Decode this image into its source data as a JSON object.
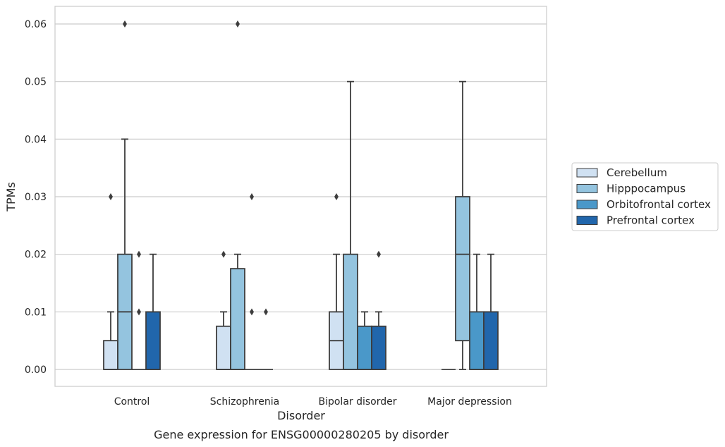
{
  "chart_data": {
    "type": "box",
    "title": "Gene expression for ENSG00000280205 by disorder",
    "xlabel": "Disorder",
    "ylabel": "TPMs",
    "ylim": [
      -0.003,
      0.063
    ],
    "yticks": [
      "0.00",
      "0.01",
      "0.02",
      "0.03",
      "0.04",
      "0.05",
      "0.06"
    ],
    "ytick_values": [
      0,
      0.01,
      0.02,
      0.03,
      0.04,
      0.05,
      0.06
    ],
    "grid": "horizontal",
    "legend_position": "right",
    "categories": [
      "Control",
      "Schizophrenia",
      "Bipolar disorder",
      "Major depression"
    ],
    "series": [
      {
        "name": "Cerebellum",
        "color": "#d0e1f2",
        "boxes": [
          {
            "whislo": 0,
            "q1": 0,
            "med": 0,
            "q3": 0.005,
            "whishi": 0.01,
            "fliers": [
              0.03
            ]
          },
          {
            "whislo": 0,
            "q1": 0,
            "med": 0,
            "q3": 0.0075,
            "whishi": 0.01,
            "fliers": [
              0.02
            ]
          },
          {
            "whislo": 0,
            "q1": 0,
            "med": 0.005,
            "q3": 0.01,
            "whishi": 0.02,
            "fliers": [
              0.03
            ]
          },
          {
            "whislo": 0,
            "q1": 0,
            "med": 0,
            "q3": 0,
            "whishi": 0,
            "fliers": []
          }
        ]
      },
      {
        "name": "Hipppocampus",
        "color": "#94c4df",
        "boxes": [
          {
            "whislo": 0,
            "q1": 0,
            "med": 0.01,
            "q3": 0.02,
            "whishi": 0.04,
            "fliers": [
              0.06
            ]
          },
          {
            "whislo": 0,
            "q1": 0,
            "med": 0,
            "q3": 0.0175,
            "whishi": 0.02,
            "fliers": [
              0.06
            ]
          },
          {
            "whislo": 0,
            "q1": 0,
            "med": 0,
            "q3": 0.02,
            "whishi": 0.05,
            "fliers": []
          },
          {
            "whislo": 0,
            "q1": 0.005,
            "med": 0.02,
            "q3": 0.03,
            "whishi": 0.05,
            "fliers": []
          }
        ]
      },
      {
        "name": "Orbitofrontal cortex",
        "color": "#4a98c9",
        "boxes": [
          {
            "whislo": 0,
            "q1": 0,
            "med": 0,
            "q3": 0,
            "whishi": 0,
            "fliers": [
              0.01,
              0.02
            ]
          },
          {
            "whislo": 0,
            "q1": 0,
            "med": 0,
            "q3": 0,
            "whishi": 0,
            "fliers": [
              0.01,
              0.03
            ]
          },
          {
            "whislo": 0,
            "q1": 0,
            "med": 0,
            "q3": 0.0075,
            "whishi": 0.01,
            "fliers": []
          },
          {
            "whislo": 0,
            "q1": 0,
            "med": 0,
            "q3": 0.01,
            "whishi": 0.02,
            "fliers": []
          }
        ]
      },
      {
        "name": "Prefrontal cortex",
        "color": "#2166ac",
        "boxes": [
          {
            "whislo": 0,
            "q1": 0,
            "med": 0,
            "q3": 0.01,
            "whishi": 0.02,
            "fliers": []
          },
          {
            "whislo": 0,
            "q1": 0,
            "med": 0,
            "q3": 0,
            "whishi": 0,
            "fliers": [
              0.01
            ]
          },
          {
            "whislo": 0,
            "q1": 0,
            "med": 0,
            "q3": 0.0075,
            "whishi": 0.01,
            "fliers": [
              0.02
            ]
          },
          {
            "whislo": 0,
            "q1": 0,
            "med": 0,
            "q3": 0.01,
            "whishi": 0.02,
            "fliers": []
          }
        ]
      }
    ]
  }
}
